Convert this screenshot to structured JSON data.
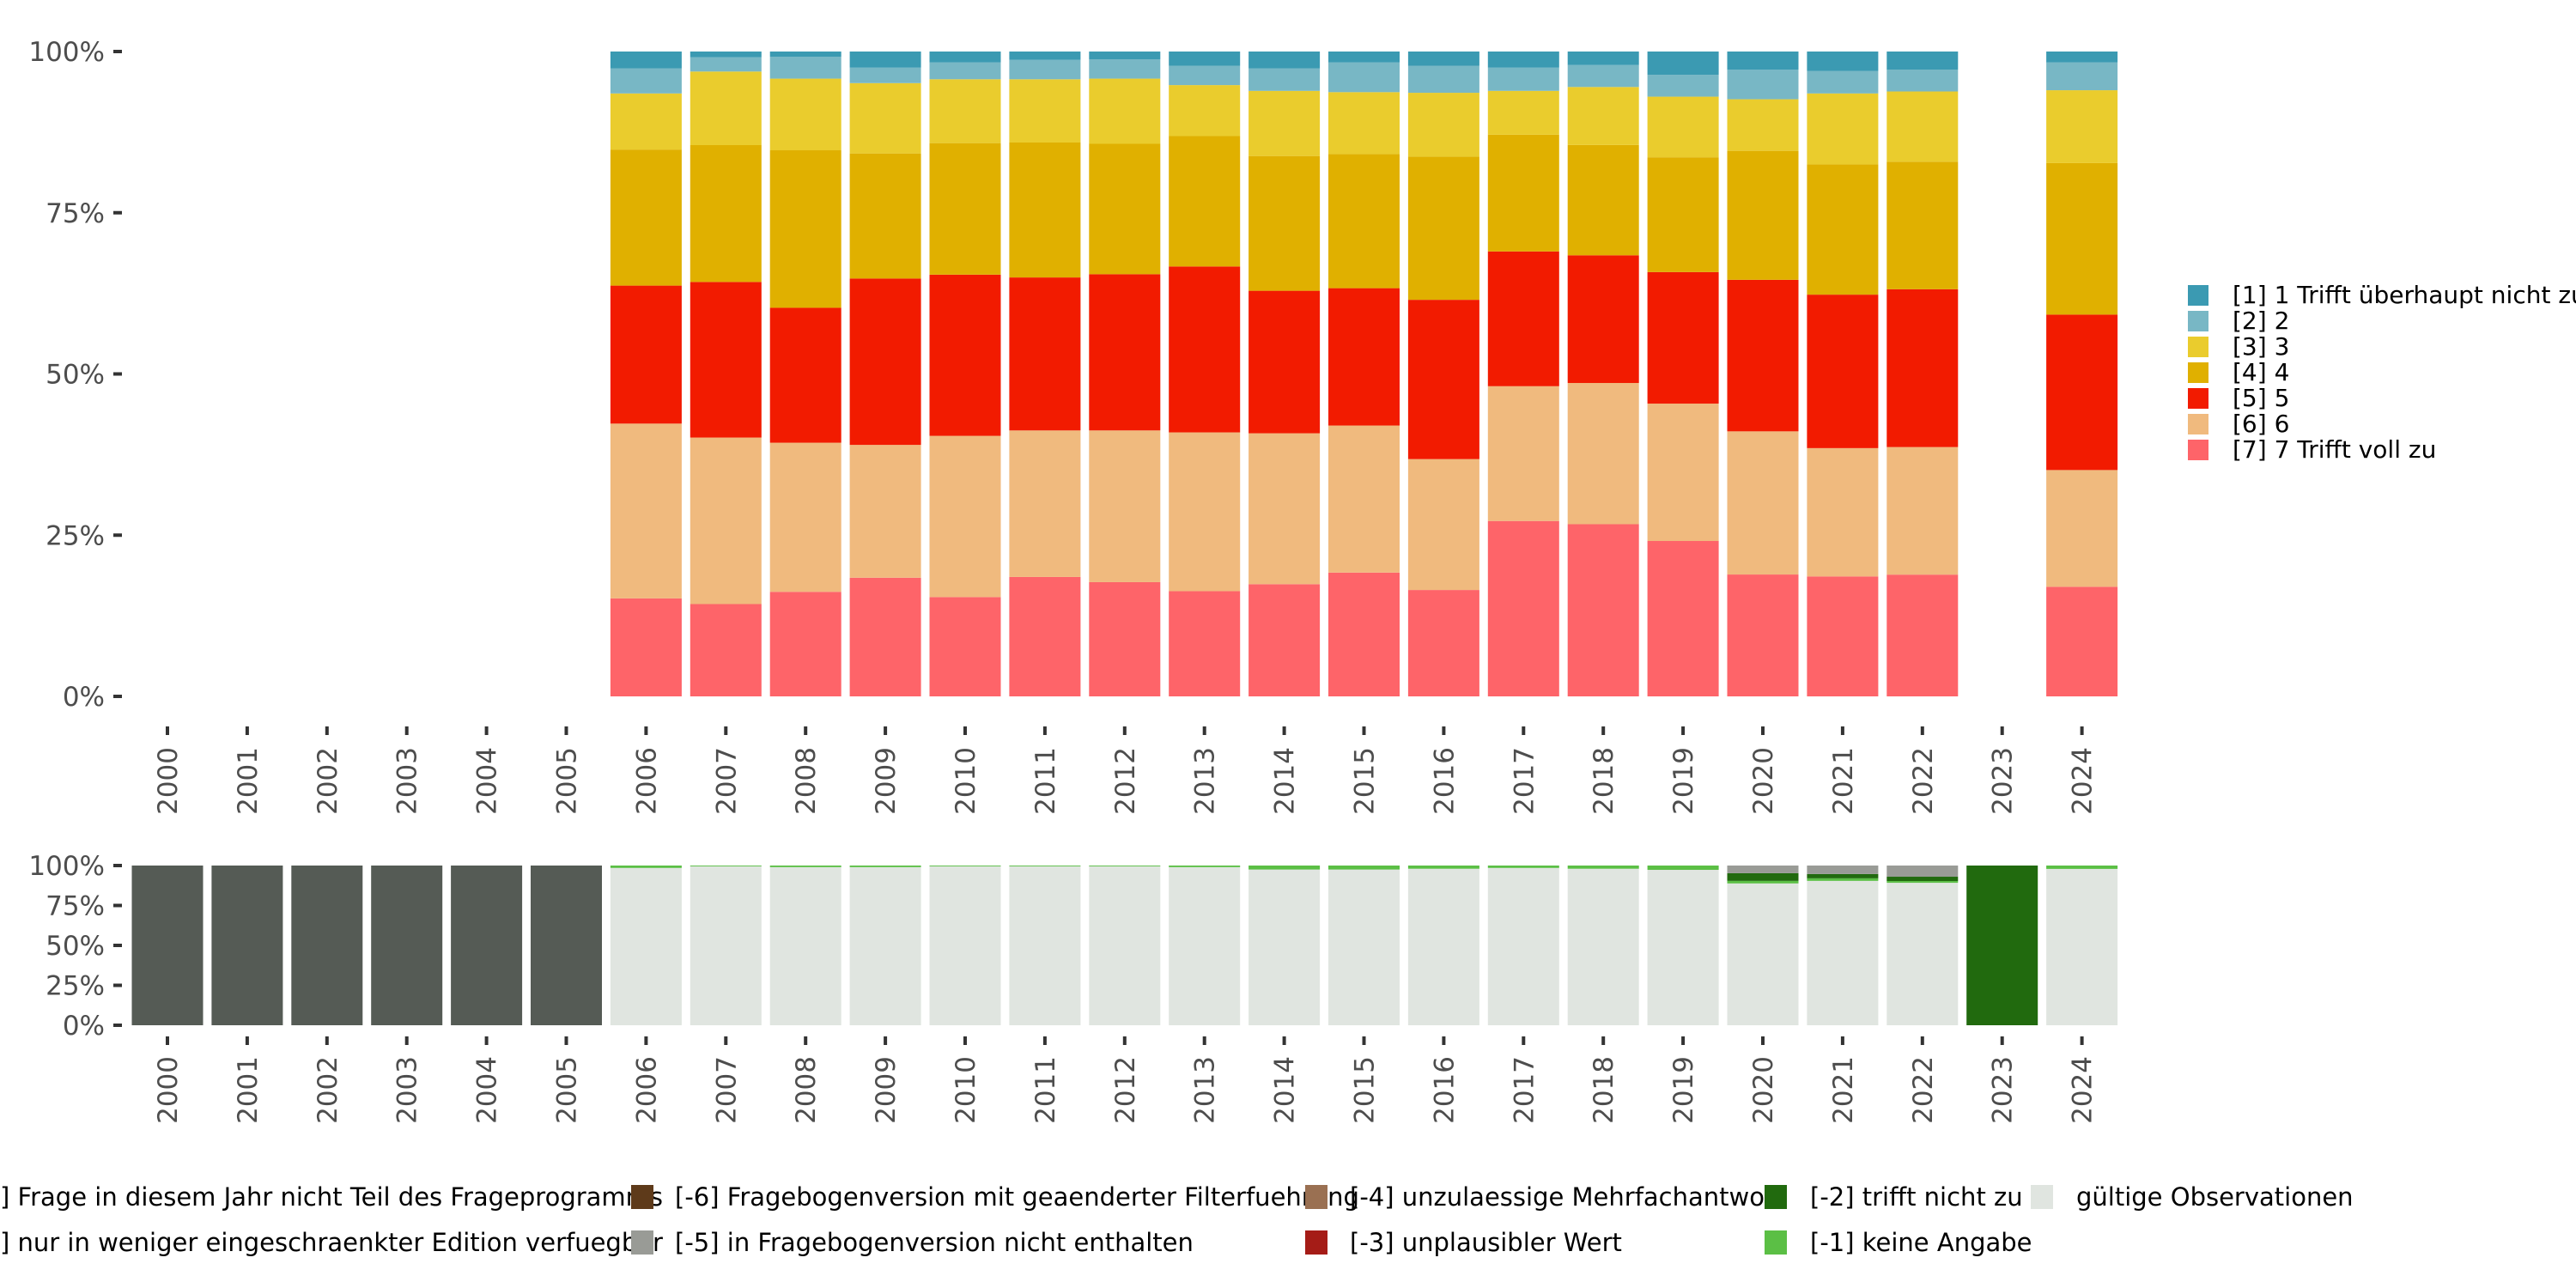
{
  "chart_data": [
    {
      "id": "valid_distribution",
      "type": "bar",
      "stacked": true,
      "normalized": true,
      "title": "",
      "xlabel": "",
      "ylabel": "",
      "ylim": [
        0,
        1
      ],
      "yticks": [
        0,
        0.25,
        0.5,
        0.75,
        1
      ],
      "ytick_labels": [
        "0%",
        "25%",
        "50%",
        "75%",
        "100%"
      ],
      "categories": [
        "2000",
        "2001",
        "2002",
        "2003",
        "2004",
        "2005",
        "2006",
        "2007",
        "2008",
        "2009",
        "2010",
        "2011",
        "2012",
        "2013",
        "2014",
        "2015",
        "2016",
        "2017",
        "2018",
        "2019",
        "2020",
        "2021",
        "2022",
        "2023",
        "2024"
      ],
      "legend_position": "right",
      "series": [
        {
          "name": "[7] 7 Trifft voll zu",
          "color": "#fe6469",
          "values": [
            null,
            null,
            null,
            null,
            null,
            null,
            15.2,
            14.3,
            16.2,
            18.4,
            15.4,
            18.5,
            17.7,
            16.3,
            17.4,
            19.2,
            16.5,
            27.2,
            26.7,
            24.1,
            18.9,
            18.6,
            18.9,
            null,
            17.0
          ]
        },
        {
          "name": "[6] 6",
          "color": "#f0ba7e",
          "values": [
            null,
            null,
            null,
            null,
            null,
            null,
            27.1,
            25.8,
            23.1,
            20.6,
            25.0,
            22.7,
            23.5,
            24.6,
            23.4,
            22.8,
            20.3,
            20.9,
            21.9,
            21.3,
            22.2,
            19.9,
            19.8,
            null,
            18.1
          ]
        },
        {
          "name": "[5] 5",
          "color": "#f21b00",
          "values": [
            null,
            null,
            null,
            null,
            null,
            null,
            21.4,
            24.1,
            20.9,
            25.8,
            25.0,
            23.7,
            24.2,
            25.7,
            22.1,
            21.3,
            24.7,
            20.9,
            19.8,
            20.4,
            23.5,
            23.8,
            24.5,
            null,
            24.1
          ]
        },
        {
          "name": "[4] 4",
          "color": "#e0b000",
          "values": [
            null,
            null,
            null,
            null,
            null,
            null,
            21.1,
            21.2,
            24.4,
            19.4,
            20.4,
            20.9,
            20.2,
            20.2,
            20.9,
            20.8,
            22.2,
            18.1,
            17.1,
            17.8,
            20.0,
            20.2,
            19.8,
            null,
            23.5
          ]
        },
        {
          "name": "[3] 3",
          "color": "#eacc2d",
          "values": [
            null,
            null,
            null,
            null,
            null,
            null,
            8.7,
            11.4,
            11.1,
            10.9,
            9.9,
            9.8,
            10.1,
            7.9,
            10.1,
            9.6,
            9.9,
            6.8,
            9.0,
            9.4,
            8.0,
            11.0,
            10.9,
            null,
            11.3
          ]
        },
        {
          "name": "[2] 2",
          "color": "#78b7c5",
          "values": [
            null,
            null,
            null,
            null,
            null,
            null,
            3.9,
            2.2,
            3.4,
            2.4,
            2.6,
            3.0,
            3.0,
            3.0,
            3.5,
            4.6,
            4.2,
            3.6,
            3.4,
            3.4,
            4.6,
            3.5,
            3.4,
            null,
            4.3
          ]
        },
        {
          "name": "[1] 1 Trifft überhaupt nicht zu",
          "color": "#3b9ab2",
          "values": [
            null,
            null,
            null,
            null,
            null,
            null,
            2.6,
            0.9,
            0.8,
            2.5,
            1.7,
            1.3,
            1.2,
            2.2,
            2.6,
            1.7,
            2.2,
            2.5,
            2.1,
            3.6,
            2.8,
            3.0,
            2.8,
            null,
            1.7
          ]
        }
      ]
    },
    {
      "id": "missing_codes",
      "type": "bar",
      "stacked": true,
      "normalized": true,
      "title": "",
      "xlabel": "",
      "ylabel": "",
      "ylim": [
        0,
        1
      ],
      "yticks": [
        0,
        0.25,
        0.5,
        0.75,
        1
      ],
      "ytick_labels": [
        "0%",
        "25%",
        "50%",
        "75%",
        "100%"
      ],
      "categories": [
        "2000",
        "2001",
        "2002",
        "2003",
        "2004",
        "2005",
        "2006",
        "2007",
        "2008",
        "2009",
        "2010",
        "2011",
        "2012",
        "2013",
        "2014",
        "2015",
        "2016",
        "2017",
        "2018",
        "2019",
        "2020",
        "2021",
        "2022",
        "2023",
        "2024"
      ],
      "legend_position": "bottom",
      "series": [
        {
          "name": "gültige Observationen",
          "color": "#e0e5e0",
          "values": [
            0,
            0,
            0,
            0,
            0,
            0,
            98.5,
            99.5,
            99.0,
            99.0,
            99.5,
            99.5,
            99.5,
            99.0,
            97.5,
            97.5,
            98.0,
            98.5,
            98.0,
            97.3,
            88.8,
            90.4,
            89.2,
            0,
            97.9
          ]
        },
        {
          "name": "[-1] keine Angabe",
          "color": "#5bbf45",
          "values": [
            0,
            0,
            0,
            0,
            0,
            0,
            1.5,
            0.5,
            1.0,
            1.0,
            0.5,
            0.5,
            0.5,
            1.0,
            2.5,
            2.5,
            2.0,
            1.5,
            2.0,
            2.7,
            1.6,
            1.6,
            1.1,
            0,
            2.1
          ]
        },
        {
          "name": "[-2] trifft nicht zu",
          "color": "#216a0e",
          "values": [
            0,
            0,
            0,
            0,
            0,
            0,
            0,
            0,
            0,
            0,
            0,
            0,
            0,
            0,
            0,
            0,
            0,
            0,
            0,
            0,
            4.8,
            2.7,
            2.7,
            100,
            0
          ]
        },
        {
          "name": "[-3] unplausibler Wert",
          "color": "#a51c17",
          "values": [
            0,
            0,
            0,
            0,
            0,
            0,
            0,
            0,
            0,
            0,
            0,
            0,
            0,
            0,
            0,
            0,
            0,
            0,
            0,
            0,
            0,
            0,
            0,
            0,
            0
          ]
        },
        {
          "name": "[-4] unzulaessige Mehrfachantwort",
          "color": "#9a7052",
          "values": [
            0,
            0,
            0,
            0,
            0,
            0,
            0,
            0,
            0,
            0,
            0,
            0,
            0,
            0,
            0,
            0,
            0,
            0,
            0,
            0,
            0,
            0,
            0,
            0,
            0
          ]
        },
        {
          "name": "[-5] in Fragebogenversion nicht enthalten",
          "color": "#999b96",
          "values": [
            0,
            0,
            0,
            0,
            0,
            0,
            0,
            0,
            0,
            0,
            0,
            0,
            0,
            0,
            0,
            0,
            0,
            0,
            0,
            0,
            4.8,
            5.3,
            7.0,
            0,
            0
          ]
        },
        {
          "name": "[-6] Fragebogenversion mit geaenderter Filterfuehrung",
          "color": "#5e3a1a",
          "values": [
            0,
            0,
            0,
            0,
            0,
            0,
            0,
            0,
            0,
            0,
            0,
            0,
            0,
            0,
            0,
            0,
            0,
            0,
            0,
            0,
            0,
            0,
            0,
            0,
            0
          ]
        },
        {
          "name": "] nur in weniger eingeschraenkter Edition verfuegbar",
          "color": "#8a8f8a",
          "values": [
            0,
            0,
            0,
            0,
            0,
            0,
            0,
            0,
            0,
            0,
            0,
            0,
            0,
            0,
            0,
            0,
            0,
            0,
            0,
            0,
            0,
            0,
            0,
            0,
            0
          ]
        },
        {
          "name": "] Frage in diesem Jahr nicht Teil des Frageprogramms",
          "color": "#555b55",
          "values": [
            100,
            100,
            100,
            100,
            100,
            100,
            0,
            0,
            0,
            0,
            0,
            0,
            0,
            0,
            0,
            0,
            0,
            0,
            0,
            0,
            0,
            0,
            0,
            0,
            0
          ]
        }
      ],
      "legend_layout": [
        [
          "] Frage in diesem Jahr nicht Teil des Frageprogramms",
          "[-6] Fragebogenversion mit geaenderter Filterfuehrung",
          "[-4] unzulaessige Mehrfachantwort",
          "[-2] trifft nicht zu",
          "gültige Observationen"
        ],
        [
          "] nur in weniger eingeschraenkter Edition verfuegbar",
          "[-5] in Fragebogenversion nicht enthalten",
          "[-3] unplausibler Wert",
          "[-1] keine Angabe"
        ]
      ]
    }
  ]
}
